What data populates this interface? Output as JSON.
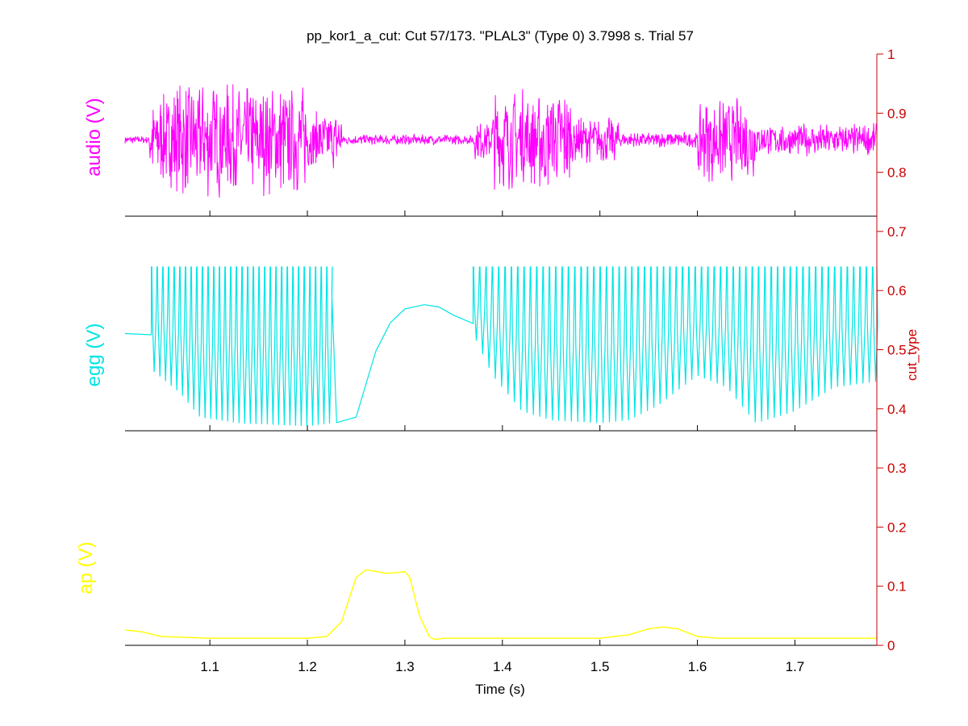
{
  "colors": {
    "audio": "#ff00ff",
    "egg": "#00e5e5",
    "ap": "#ffff00",
    "right_axis": "#cc0000",
    "axis": "#000000"
  },
  "chart_data": {
    "type": "line",
    "title": "pp_kor1_a_cut: Cut 57/173. \"PLAL3\" (Type 0) 3.7998 s. Trial 57",
    "xlabel": "Time (s)",
    "xlim": [
      1.013,
      1.784
    ],
    "x_ticks": [
      "1.1",
      "1.2",
      "1.3",
      "1.4",
      "1.5",
      "1.6",
      "1.7"
    ],
    "x_tick_values": [
      1.1,
      1.2,
      1.3,
      1.4,
      1.5,
      1.6,
      1.7
    ],
    "right_axis": {
      "label": "cut_type",
      "ylim": [
        0,
        1
      ],
      "ticks": [
        "0",
        "0.1",
        "0.2",
        "0.3",
        "0.4",
        "0.5",
        "0.6",
        "0.7",
        "0.8",
        "0.9",
        "1"
      ],
      "tick_values": [
        0,
        0.1,
        0.2,
        0.3,
        0.4,
        0.5,
        0.6,
        0.7,
        0.8,
        0.9,
        1
      ]
    },
    "series": [
      {
        "name": "audio (V)",
        "panel": 0,
        "color": "#ff00ff",
        "kind": "oscillation",
        "baseline": 0.865,
        "segments": [
          {
            "x0": 1.013,
            "x1": 1.038,
            "amp": 0.006
          },
          {
            "x0": 1.038,
            "x1": 1.06,
            "amp": 0.07
          },
          {
            "x0": 1.06,
            "x1": 1.12,
            "amp": 0.09
          },
          {
            "x0": 1.12,
            "x1": 1.2,
            "amp": 0.085
          },
          {
            "x0": 1.2,
            "x1": 1.235,
            "amp": 0.045
          },
          {
            "x0": 1.235,
            "x1": 1.37,
            "amp": 0.008
          },
          {
            "x0": 1.37,
            "x1": 1.39,
            "amp": 0.03
          },
          {
            "x0": 1.39,
            "x1": 1.47,
            "amp": 0.08
          },
          {
            "x0": 1.47,
            "x1": 1.52,
            "amp": 0.035
          },
          {
            "x0": 1.52,
            "x1": 1.6,
            "amp": 0.012
          },
          {
            "x0": 1.6,
            "x1": 1.66,
            "amp": 0.065
          },
          {
            "x0": 1.66,
            "x1": 1.784,
            "amp": 0.025
          }
        ]
      },
      {
        "name": "egg (V)",
        "panel": 1,
        "color": "#00e5e5",
        "kind": "pulse",
        "top": 0.642,
        "flat_level": 0.53,
        "flat_ranges": [
          [
            1.013,
            1.04
          ]
        ],
        "pulse_ranges": [
          {
            "x0": 1.04,
            "x1": 1.225,
            "period": 0.0058
          },
          {
            "x0": 1.37,
            "x1": 1.784,
            "period": 0.0065
          }
        ],
        "trough_points": [
          [
            1.04,
            0.47
          ],
          [
            1.07,
            0.43
          ],
          [
            1.09,
            0.39
          ],
          [
            1.13,
            0.38
          ],
          [
            1.2,
            0.375
          ],
          [
            1.225,
            0.38
          ],
          [
            1.37,
            0.53
          ],
          [
            1.39,
            0.46
          ],
          [
            1.42,
            0.4
          ],
          [
            1.45,
            0.385
          ],
          [
            1.5,
            0.38
          ],
          [
            1.53,
            0.385
          ],
          [
            1.56,
            0.41
          ],
          [
            1.6,
            0.46
          ],
          [
            1.63,
            0.44
          ],
          [
            1.66,
            0.38
          ],
          [
            1.7,
            0.4
          ],
          [
            1.74,
            0.44
          ],
          [
            1.784,
            0.45
          ]
        ],
        "glide_points": [
          [
            1.225,
            0.6
          ],
          [
            1.23,
            0.38
          ],
          [
            1.25,
            0.39
          ],
          [
            1.27,
            0.5
          ],
          [
            1.285,
            0.55
          ],
          [
            1.3,
            0.57
          ],
          [
            1.32,
            0.58
          ],
          [
            1.335,
            0.575
          ],
          [
            1.35,
            0.56
          ],
          [
            1.37,
            0.545
          ]
        ]
      },
      {
        "name": "ap (V)",
        "panel": 2,
        "color": "#ffff00",
        "kind": "line",
        "points": [
          [
            1.013,
            0.026
          ],
          [
            1.03,
            0.023
          ],
          [
            1.05,
            0.015
          ],
          [
            1.1,
            0.012
          ],
          [
            1.2,
            0.012
          ],
          [
            1.22,
            0.015
          ],
          [
            1.235,
            0.04
          ],
          [
            1.25,
            0.115
          ],
          [
            1.26,
            0.128
          ],
          [
            1.275,
            0.124
          ],
          [
            1.28,
            0.122
          ],
          [
            1.29,
            0.123
          ],
          [
            1.3,
            0.125
          ],
          [
            1.305,
            0.115
          ],
          [
            1.315,
            0.05
          ],
          [
            1.325,
            0.015
          ],
          [
            1.33,
            0.01
          ],
          [
            1.34,
            0.012
          ],
          [
            1.5,
            0.012
          ],
          [
            1.53,
            0.018
          ],
          [
            1.55,
            0.028
          ],
          [
            1.565,
            0.031
          ],
          [
            1.58,
            0.028
          ],
          [
            1.6,
            0.015
          ],
          [
            1.62,
            0.012
          ],
          [
            1.784,
            0.012
          ]
        ]
      }
    ]
  }
}
